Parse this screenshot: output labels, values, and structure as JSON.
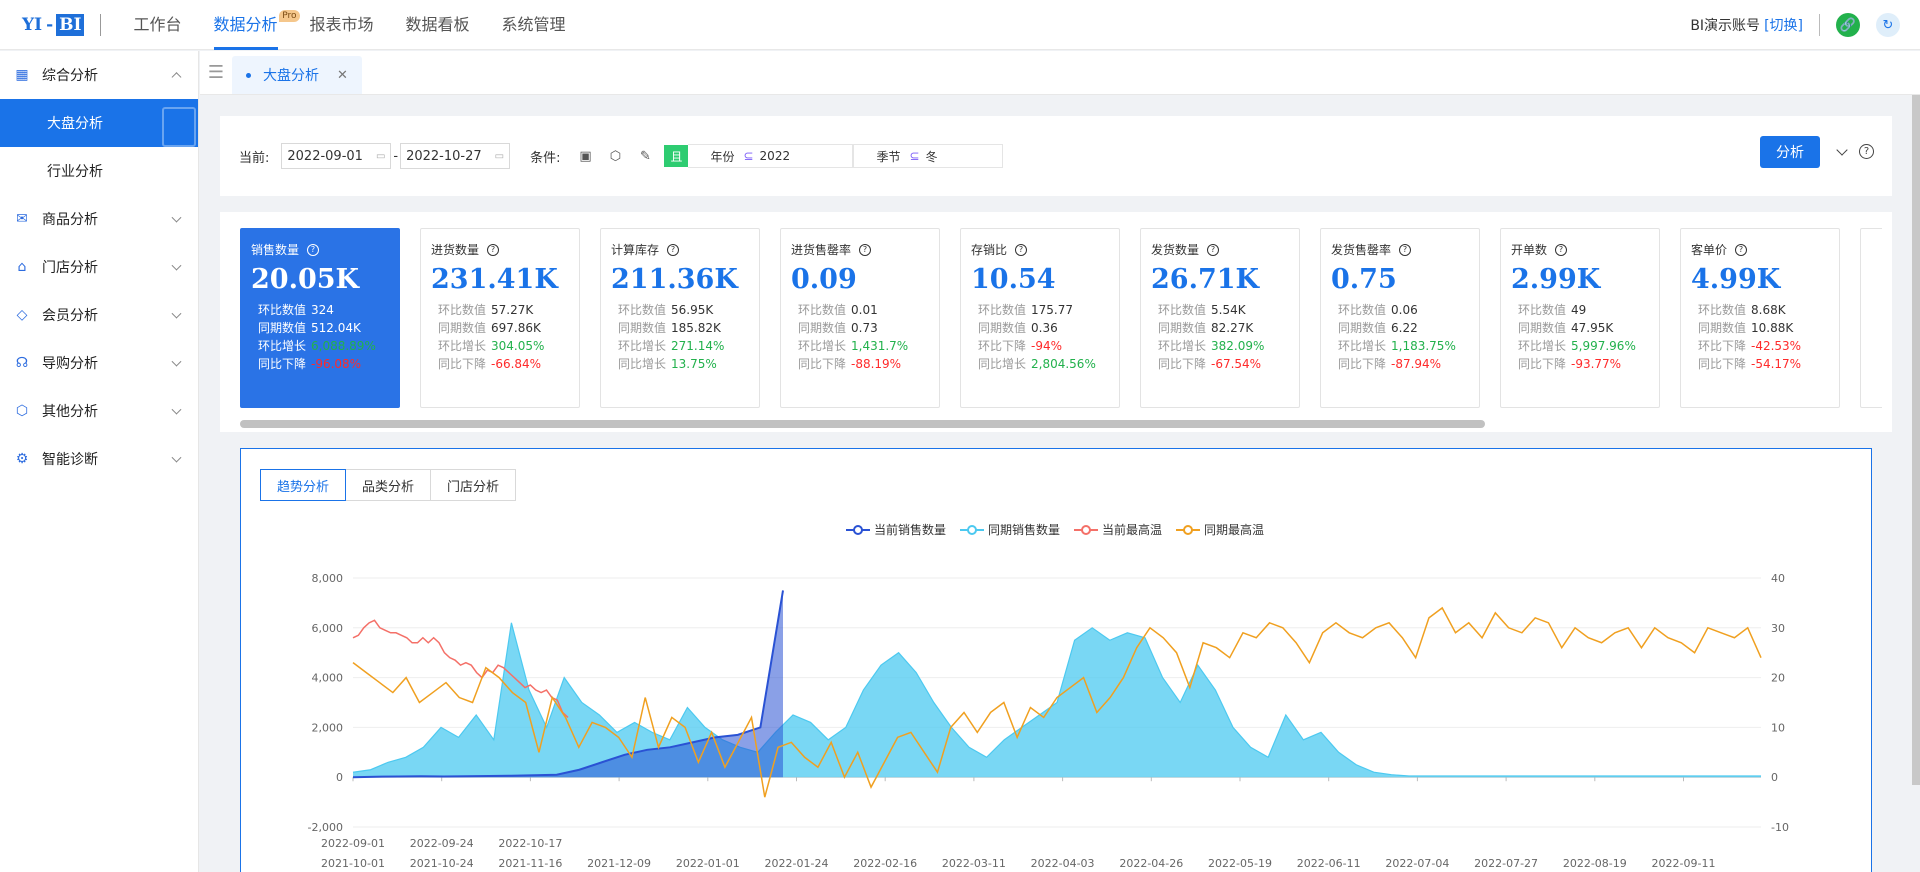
{
  "logo": {
    "left": "YI",
    "dash": "-",
    "right": "BI"
  },
  "topnav": [
    {
      "label": "工作台",
      "active": false
    },
    {
      "label": "数据分析",
      "active": true,
      "badge": "Pro"
    },
    {
      "label": "报表市场",
      "active": false
    },
    {
      "label": "数据看板",
      "active": false
    },
    {
      "label": "系统管理",
      "active": false
    }
  ],
  "account": {
    "name": "BI演示账号",
    "switch": "[切换]"
  },
  "sidebar": [
    {
      "label": "综合分析",
      "icon": "calendar-icon",
      "expanded": true,
      "children": [
        {
          "label": "大盘分析",
          "active": true
        },
        {
          "label": "行业分析",
          "active": false
        }
      ]
    },
    {
      "label": "商品分析",
      "icon": "box-icon"
    },
    {
      "label": "门店分析",
      "icon": "store-icon"
    },
    {
      "label": "会员分析",
      "icon": "diamond-icon"
    },
    {
      "label": "导购分析",
      "icon": "headset-icon"
    },
    {
      "label": "其他分析",
      "icon": "cube-icon"
    },
    {
      "label": "智能诊断",
      "icon": "gear-icon"
    }
  ],
  "tab": {
    "label": "大盘分析"
  },
  "filter": {
    "current_label": "当前:",
    "start_date": "2022-09-01",
    "end_date": "2022-10-27",
    "dash": "-",
    "cond_label": "条件:",
    "and_label": "且",
    "fields": [
      {
        "name": "年份",
        "op": "⊆",
        "value": "2022"
      },
      {
        "name": "季节",
        "op": "⊆",
        "value": "冬"
      }
    ],
    "analyze_label": "分析"
  },
  "kpis": [
    {
      "title": "销售数量",
      "value": "20.05K",
      "active": true,
      "rows": [
        {
          "label": "环比数值",
          "value": "324",
          "trend": ""
        },
        {
          "label": "同期数值",
          "value": "512.04K",
          "trend": ""
        },
        {
          "label": "环比增长",
          "value": "6,088.89%",
          "trend": "up"
        },
        {
          "label": "同比下降",
          "value": "-96.08%",
          "trend": "down"
        }
      ]
    },
    {
      "title": "进货数量",
      "value": "231.41K",
      "rows": [
        {
          "label": "环比数值",
          "value": "57.27K",
          "trend": ""
        },
        {
          "label": "同期数值",
          "value": "697.86K",
          "trend": ""
        },
        {
          "label": "环比增长",
          "value": "304.05%",
          "trend": "up"
        },
        {
          "label": "同比下降",
          "value": "-66.84%",
          "trend": "down"
        }
      ]
    },
    {
      "title": "计算库存",
      "value": "211.36K",
      "rows": [
        {
          "label": "环比数值",
          "value": "56.95K",
          "trend": ""
        },
        {
          "label": "同期数值",
          "value": "185.82K",
          "trend": ""
        },
        {
          "label": "环比增长",
          "value": "271.14%",
          "trend": "up"
        },
        {
          "label": "同比增长",
          "value": "13.75%",
          "trend": "up"
        }
      ]
    },
    {
      "title": "进货售罄率",
      "value": "0.09",
      "rows": [
        {
          "label": "环比数值",
          "value": "0.01",
          "trend": ""
        },
        {
          "label": "同期数值",
          "value": "0.73",
          "trend": ""
        },
        {
          "label": "环比增长",
          "value": "1,431.7%",
          "trend": "up"
        },
        {
          "label": "同比下降",
          "value": "-88.19%",
          "trend": "down"
        }
      ]
    },
    {
      "title": "存销比",
      "value": "10.54",
      "rows": [
        {
          "label": "环比数值",
          "value": "175.77",
          "trend": ""
        },
        {
          "label": "同期数值",
          "value": "0.36",
          "trend": ""
        },
        {
          "label": "环比下降",
          "value": "-94%",
          "trend": "down"
        },
        {
          "label": "同比增长",
          "value": "2,804.56%",
          "trend": "up"
        }
      ]
    },
    {
      "title": "发货数量",
      "value": "26.71K",
      "rows": [
        {
          "label": "环比数值",
          "value": "5.54K",
          "trend": ""
        },
        {
          "label": "同期数值",
          "value": "82.27K",
          "trend": ""
        },
        {
          "label": "环比增长",
          "value": "382.09%",
          "trend": "up"
        },
        {
          "label": "同比下降",
          "value": "-67.54%",
          "trend": "down"
        }
      ]
    },
    {
      "title": "发货售罄率",
      "value": "0.75",
      "rows": [
        {
          "label": "环比数值",
          "value": "0.06",
          "trend": ""
        },
        {
          "label": "同期数值",
          "value": "6.22",
          "trend": ""
        },
        {
          "label": "环比增长",
          "value": "1,183.75%",
          "trend": "up"
        },
        {
          "label": "同比下降",
          "value": "-87.94%",
          "trend": "down"
        }
      ]
    },
    {
      "title": "开单数",
      "value": "2.99K",
      "rows": [
        {
          "label": "环比数值",
          "value": "49",
          "trend": ""
        },
        {
          "label": "同期数值",
          "value": "47.95K",
          "trend": ""
        },
        {
          "label": "环比增长",
          "value": "5,997.96%",
          "trend": "up"
        },
        {
          "label": "同比下降",
          "value": "-93.77%",
          "trend": "down"
        }
      ]
    },
    {
      "title": "客单价",
      "value": "4.99K",
      "rows": [
        {
          "label": "环比数值",
          "value": "8.68K",
          "trend": ""
        },
        {
          "label": "同期数值",
          "value": "10.88K",
          "trend": ""
        },
        {
          "label": "环比下降",
          "value": "-42.53%",
          "trend": "down"
        },
        {
          "label": "同比下降",
          "value": "-54.17%",
          "trend": "down"
        }
      ]
    }
  ],
  "chart_tabs": [
    {
      "label": "趋势分析",
      "active": true
    },
    {
      "label": "品类分析",
      "active": false
    },
    {
      "label": "门店分析",
      "active": false
    }
  ],
  "colors": {
    "current_sales": "#2a52d4",
    "prior_sales": "#4cc9f0",
    "current_temp": "#f47068",
    "prior_temp": "#f0a020",
    "accent": "#1a73e8"
  },
  "chart_data": {
    "type": "line",
    "legend_position": "top-center",
    "grid": true,
    "series": [
      {
        "name": "当前销售数量",
        "axis": "left",
        "color": "#2a52d4",
        "style": "line",
        "values": [
          0,
          20,
          30,
          40,
          30,
          40,
          50,
          60,
          80,
          100,
          300,
          600,
          900,
          1100,
          1200,
          1400,
          1600,
          1700,
          2000,
          7500
        ]
      },
      {
        "name": "同期销售数量",
        "axis": "left",
        "color": "#4cc9f0",
        "style": "area",
        "values": [
          200,
          300,
          600,
          800,
          1200,
          2000,
          1600,
          2500,
          1500,
          6200,
          3500,
          2000,
          4000,
          3000,
          2500,
          1800,
          2200,
          1800,
          1500,
          2800,
          2000,
          1500,
          1200,
          1000,
          1800,
          2500,
          2200,
          1500,
          2000,
          3500,
          4500,
          5000,
          4200,
          3000,
          2000,
          1200,
          800,
          1500,
          2000,
          2500,
          3000,
          5500,
          6000,
          5500,
          5800,
          5600,
          4000,
          3000,
          4500,
          3500,
          2000,
          1200,
          800,
          2500,
          1500,
          1800,
          1000,
          500,
          200,
          100,
          50,
          50,
          50,
          50,
          50,
          50,
          50,
          50,
          50,
          50,
          50,
          50,
          50,
          50,
          50,
          50,
          50,
          50,
          50,
          50,
          50
        ]
      },
      {
        "name": "当前最高温",
        "axis": "right",
        "color": "#f47068",
        "style": "line",
        "values": [
          28,
          28.5,
          30,
          31,
          31.5,
          30,
          29.5,
          29,
          29,
          28.5,
          28,
          27,
          27,
          28,
          27,
          28,
          27,
          25,
          24,
          23.5,
          22.5,
          23,
          22.5,
          21,
          20,
          21.5,
          21,
          22.5,
          22,
          21,
          20,
          19,
          18,
          18.5,
          17.5,
          17,
          17.5,
          16,
          15.5,
          13,
          12
        ]
      },
      {
        "name": "同期最高温",
        "axis": "right",
        "color": "#f0a020",
        "style": "line",
        "values": [
          23,
          21,
          19,
          17,
          20,
          15,
          17,
          19,
          16,
          15,
          22,
          20,
          17,
          15,
          5,
          16,
          12,
          6,
          11,
          10,
          8,
          4,
          16,
          6,
          12,
          10,
          3,
          9,
          2,
          7,
          12,
          -4,
          6,
          7,
          4,
          2,
          7,
          0,
          5,
          -2,
          3,
          8,
          9,
          5,
          1,
          10,
          13,
          9,
          13,
          15,
          8,
          14,
          12,
          16,
          18,
          20,
          13,
          16,
          20,
          26,
          30,
          28,
          25,
          18,
          27,
          26,
          24,
          29,
          28,
          31,
          30,
          27,
          23,
          29,
          31,
          29,
          28,
          30,
          31,
          28,
          24,
          32,
          34,
          29,
          31,
          28,
          33,
          30,
          29,
          32,
          31,
          26,
          30,
          28,
          27,
          29,
          30,
          26,
          30,
          28,
          27,
          25,
          30,
          29,
          28,
          30,
          24
        ]
      }
    ],
    "y_left": {
      "min": -2000,
      "max": 8000,
      "ticks": [
        "8,000",
        "6,000",
        "4,000",
        "2,000",
        "0",
        "-2,000"
      ]
    },
    "y_right": {
      "min": -10,
      "max": 40,
      "ticks": [
        "40",
        "30",
        "20",
        "10",
        "0",
        "-10"
      ]
    },
    "x_current_ticks": [
      "2022-09-01",
      "2022-09-24",
      "2022-10-17"
    ],
    "x_prior_ticks": [
      "2021-10-01",
      "2021-10-24",
      "2021-11-16",
      "2021-12-09",
      "2022-01-01",
      "2022-01-24",
      "2022-02-16",
      "2022-03-11",
      "2022-04-03",
      "2022-04-26",
      "2022-05-19",
      "2022-06-11",
      "2022-07-04",
      "2022-07-27",
      "2022-08-19",
      "2022-09-11"
    ]
  }
}
